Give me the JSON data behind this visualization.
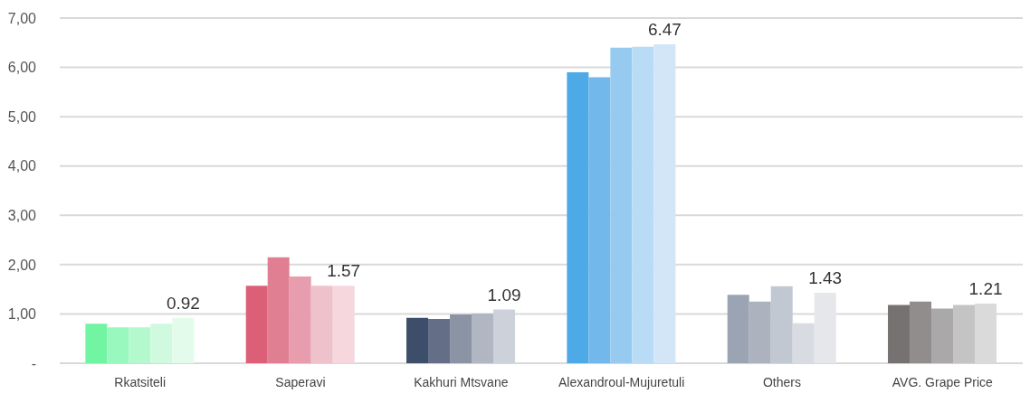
{
  "chart_data": {
    "type": "bar",
    "categories": [
      "Rkatsiteli",
      "Saperavi",
      "Kakhuri Mtsvane",
      "Alexandroul-Mujuretuli",
      "Others",
      "AVG. Grape Price"
    ],
    "series": [
      {
        "colors": [
          "#72f5a2",
          "#dc5f78",
          "#3c4e69",
          "#4eaae6",
          "#9ba4b2",
          "#767272"
        ],
        "values": [
          0.8,
          1.57,
          0.92,
          5.9,
          1.39,
          1.18
        ]
      },
      {
        "colors": [
          "#98f8bd",
          "#e07f92",
          "#646f87",
          "#72b8ea",
          "#acb3bf",
          "#918d8d"
        ],
        "values": [
          0.73,
          2.15,
          0.9,
          5.8,
          1.25,
          1.25
        ]
      },
      {
        "colors": [
          "#b3f9cd",
          "#e89daf",
          "#8a94a5",
          "#96caf0",
          "#c2c8d2",
          "#aaa8a8"
        ],
        "values": [
          0.73,
          1.76,
          0.99,
          6.4,
          1.56,
          1.11
        ]
      },
      {
        "colors": [
          "#d0fae0",
          "#efc1ca",
          "#b0b6c2",
          "#b8dcf5",
          "#d8dbe2",
          "#c4c4c4"
        ],
        "values": [
          0.8,
          1.57,
          1.01,
          6.42,
          0.81,
          1.18
        ]
      },
      {
        "colors": [
          "#e2fbeb",
          "#f5d7dd",
          "#cdd1d9",
          "#d2e6f8",
          "#e6e7eb",
          "#dadada"
        ],
        "values": [
          0.92,
          1.57,
          1.09,
          6.47,
          1.43,
          1.21
        ],
        "value_labels": [
          "0.92",
          "1.57",
          "1.09",
          "6.47",
          "1.43",
          "1.21"
        ]
      }
    ],
    "ylim": [
      0,
      7
    ],
    "yticks": [
      {
        "value": 0,
        "label": "-"
      },
      {
        "value": 1,
        "label": "1,00"
      },
      {
        "value": 2,
        "label": "2,00"
      },
      {
        "value": 3,
        "label": "3,00"
      },
      {
        "value": 4,
        "label": "4,00"
      },
      {
        "value": 5,
        "label": "5,00"
      },
      {
        "value": 6,
        "label": "6,00"
      },
      {
        "value": 7,
        "label": "7,00"
      }
    ],
    "grid": "y",
    "legend": false
  }
}
